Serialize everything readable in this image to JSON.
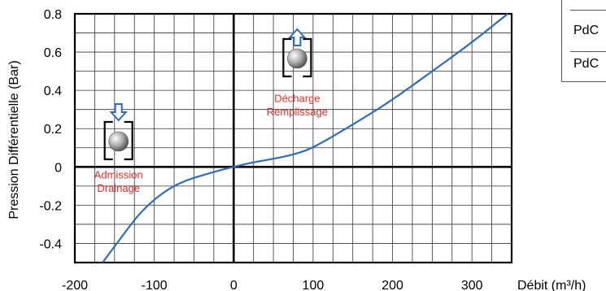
{
  "chart_data": {
    "type": "line",
    "title": "",
    "xlabel": "Débit (m³/h)",
    "ylabel": "Pression Différentielle (Bar)",
    "xlim": [
      -200,
      350
    ],
    "ylim": [
      -0.5,
      0.8
    ],
    "xticks": [
      -200,
      -100,
      0,
      100,
      200,
      300
    ],
    "yticks": [
      0.8,
      0.6,
      0.4,
      0.2,
      0,
      -0.2,
      -0.4
    ],
    "ytick_labels": [
      "0.8",
      "0.6",
      "0.4",
      "0.2",
      "0",
      "-0.2",
      "-0.4"
    ],
    "grid": true,
    "series": [
      {
        "color": "#2e6db5",
        "x": [
          -165,
          -140,
          -120,
          -100,
          -80,
          -60,
          -40,
          -20,
          0,
          20,
          40,
          60,
          80,
          100,
          150,
          200,
          250,
          300,
          345
        ],
        "y": [
          -0.5,
          -0.36,
          -0.25,
          -0.17,
          -0.11,
          -0.07,
          -0.045,
          -0.02,
          0.0,
          0.02,
          0.035,
          0.05,
          0.07,
          0.1,
          0.22,
          0.35,
          0.5,
          0.65,
          0.8
        ]
      }
    ],
    "annotations": [
      {
        "text": "Décharge",
        "x": 80,
        "y": 0.34
      },
      {
        "text": "Remplissage",
        "x": 80,
        "y": 0.27
      },
      {
        "text": "Admission",
        "x": -145,
        "y": -0.06
      },
      {
        "text": "Drainage",
        "x": -145,
        "y": -0.13
      }
    ]
  },
  "legend": {
    "items": [
      "PdC",
      "PdC"
    ]
  }
}
